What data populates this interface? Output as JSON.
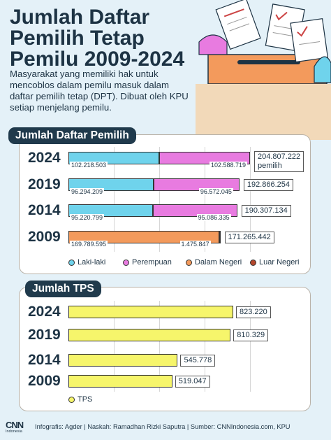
{
  "header": {
    "title_line1": "Jumlah Daftar",
    "title_line2": "Pemilih Tetap",
    "title_line3": "Pemilu 2009-2024",
    "intro": "Masyarakat yang memiliki hak untuk mencoblos dalam pemilu masuk dalam daftar pemilih tetap (DPT). Dibuat oleh KPU setiap menjelang pemilu."
  },
  "colors": {
    "laki_laki": "#6fd3ec",
    "perempuan": "#e87be0",
    "dalam_negeri": "#f39a5c",
    "luar_negeri": "#b4472c",
    "tps": "#f6f56b",
    "panel_header": "#203a4c",
    "background": "#e4f1f8"
  },
  "chart_data": [
    {
      "type": "bar",
      "orientation": "horizontal",
      "stacked": true,
      "title": "Jumlah Daftar Pemilih",
      "categories": [
        "2024",
        "2019",
        "2014",
        "2009"
      ],
      "series": [
        {
          "name": "Laki-laki",
          "values": [
            102218503,
            96294209,
            95220799,
            null
          ],
          "labels": [
            "102.218.503",
            "96.294.209",
            "95.220.799",
            ""
          ]
        },
        {
          "name": "Perempuan",
          "values": [
            102588719,
            96572045,
            95086335,
            null
          ],
          "labels": [
            "102.588.719",
            "96.572.045",
            "95.086.335",
            ""
          ]
        },
        {
          "name": "Dalam Negeri",
          "values": [
            null,
            null,
            null,
            169789595
          ],
          "labels": [
            "",
            "",
            "",
            "169.789.595"
          ]
        },
        {
          "name": "Luar Negeri",
          "values": [
            null,
            null,
            null,
            1475847
          ],
          "labels": [
            "",
            "",
            "",
            "1.475.847"
          ]
        }
      ],
      "totals": [
        204807222,
        192866254,
        190307134,
        171265442
      ],
      "total_labels": [
        "204.807.222",
        "192.866.254",
        "190.307.134",
        "171.265.442"
      ],
      "total_suffix_2024": "pemilih",
      "legend": [
        "Laki-laki",
        "Perempuan",
        "Dalam Negeri",
        "Luar Negeri"
      ],
      "legend_position": "bottom",
      "grid": true
    },
    {
      "type": "bar",
      "orientation": "horizontal",
      "title": "Jumlah TPS",
      "categories": [
        "2024",
        "2019",
        "2014",
        "2009"
      ],
      "series": [
        {
          "name": "TPS",
          "values": [
            823220,
            810329,
            545778,
            519047
          ]
        }
      ],
      "value_labels": [
        "823.220",
        "810.329",
        "545.778",
        "519.047"
      ],
      "legend": [
        "TPS"
      ],
      "legend_position": "bottom",
      "grid": true
    }
  ],
  "footer": {
    "logo_main": "CNN",
    "logo_sub": "Indonesia",
    "credit": "Infografis: Agder | Naskah: Ramadhan Rizki Saputra | Sumber: CNNIndonesia.com, KPU"
  }
}
